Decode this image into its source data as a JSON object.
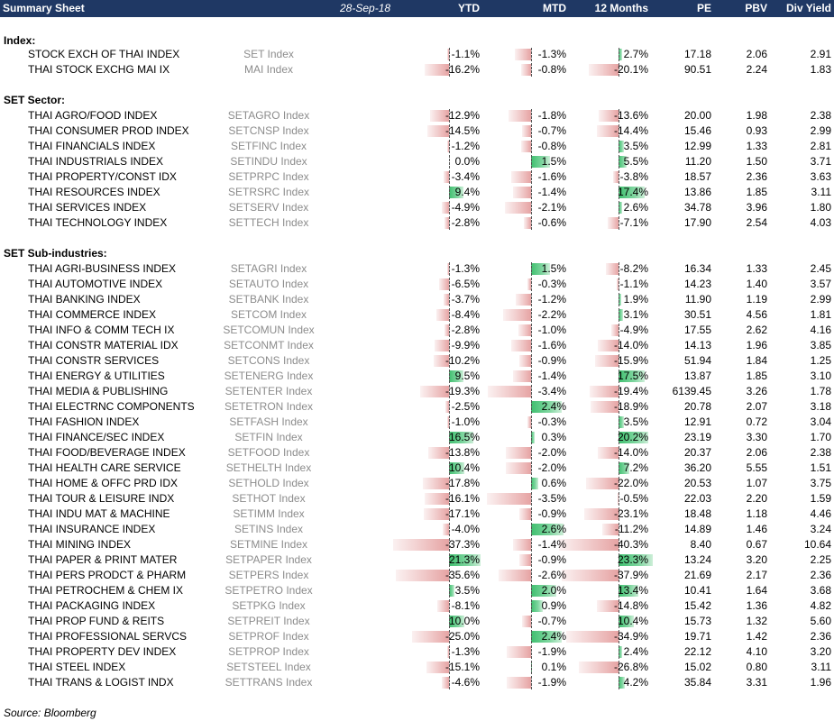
{
  "header": {
    "title": "Summary Sheet",
    "date": "28-Sep-18",
    "columns": [
      "YTD",
      "MTD",
      "12 Months",
      "PE",
      "PBV",
      "Div Yield"
    ]
  },
  "sections": [
    {
      "title": "Index:",
      "rows": [
        {
          "name": "STOCK EXCH OF THAI INDEX",
          "ticker": "SET Index",
          "ytd": "-1.1%",
          "mtd": "-1.3%",
          "m12": "2.7%",
          "pe": "17.18",
          "pbv": "2.06",
          "dy": "2.91"
        },
        {
          "name": "THAI STOCK EXCHG MAI IX",
          "ticker": "MAI Index",
          "ytd": "-16.2%",
          "mtd": "-0.8%",
          "m12": "-20.1%",
          "pe": "90.51",
          "pbv": "2.24",
          "dy": "1.83"
        }
      ]
    },
    {
      "title": "SET Sector:",
      "rows": [
        {
          "name": "THAI AGRO/FOOD INDEX",
          "ticker": "SETAGRO Index",
          "ytd": "-12.9%",
          "mtd": "-1.8%",
          "m12": "-13.6%",
          "pe": "20.00",
          "pbv": "1.98",
          "dy": "2.38"
        },
        {
          "name": "THAI CONSUMER PROD INDEX",
          "ticker": "SETCNSP Index",
          "ytd": "-14.5%",
          "mtd": "-0.7%",
          "m12": "-14.4%",
          "pe": "15.46",
          "pbv": "0.93",
          "dy": "2.99"
        },
        {
          "name": "THAI FINANCIALS INDEX",
          "ticker": "SETFINC Index",
          "ytd": "-1.2%",
          "mtd": "-0.8%",
          "m12": "3.5%",
          "pe": "12.99",
          "pbv": "1.33",
          "dy": "2.81"
        },
        {
          "name": "THAI INDUSTRIALS INDEX",
          "ticker": "SETINDU Index",
          "ytd": "0.0%",
          "mtd": "1.5%",
          "m12": "5.5%",
          "pe": "11.20",
          "pbv": "1.50",
          "dy": "3.71"
        },
        {
          "name": "THAI PROPERTY/CONST IDX",
          "ticker": "SETPRPC Index",
          "ytd": "-3.4%",
          "mtd": "-1.6%",
          "m12": "-3.8%",
          "pe": "18.57",
          "pbv": "2.36",
          "dy": "3.63"
        },
        {
          "name": "THAI RESOURCES INDEX",
          "ticker": "SETRSRC Index",
          "ytd": "9.4%",
          "mtd": "-1.4%",
          "m12": "17.4%",
          "pe": "13.86",
          "pbv": "1.85",
          "dy": "3.11"
        },
        {
          "name": "THAI SERVICES INDEX",
          "ticker": "SETSERV Index",
          "ytd": "-4.9%",
          "mtd": "-2.1%",
          "m12": "2.6%",
          "pe": "34.78",
          "pbv": "3.96",
          "dy": "1.80"
        },
        {
          "name": "THAI TECHNOLOGY INDEX",
          "ticker": "SETTECH Index",
          "ytd": "-2.8%",
          "mtd": "-0.6%",
          "m12": "-7.1%",
          "pe": "17.90",
          "pbv": "2.54",
          "dy": "4.03"
        }
      ]
    },
    {
      "title": "SET Sub-industries:",
      "rows": [
        {
          "name": "THAI AGRI-BUSINESS INDEX",
          "ticker": "SETAGRI Index",
          "ytd": "-1.3%",
          "mtd": "1.5%",
          "m12": "-8.2%",
          "pe": "16.34",
          "pbv": "1.33",
          "dy": "2.45"
        },
        {
          "name": "THAI AUTOMOTIVE INDEX",
          "ticker": "SETAUTO Index",
          "ytd": "-6.5%",
          "mtd": "-0.3%",
          "m12": "-1.1%",
          "pe": "14.23",
          "pbv": "1.40",
          "dy": "3.57"
        },
        {
          "name": "THAI BANKING INDEX",
          "ticker": "SETBANK Index",
          "ytd": "-3.7%",
          "mtd": "-1.2%",
          "m12": "1.9%",
          "pe": "11.90",
          "pbv": "1.19",
          "dy": "2.99"
        },
        {
          "name": "THAI COMMERCE INDEX",
          "ticker": "SETCOM Index",
          "ytd": "-8.4%",
          "mtd": "-2.2%",
          "m12": "3.1%",
          "pe": "30.51",
          "pbv": "4.56",
          "dy": "1.81"
        },
        {
          "name": "THAI INFO & COMM TECH IX",
          "ticker": "SETCOMUN Index",
          "ytd": "-2.8%",
          "mtd": "-1.0%",
          "m12": "-4.9%",
          "pe": "17.55",
          "pbv": "2.62",
          "dy": "4.16"
        },
        {
          "name": "THAI CONSTR MATERIAL IDX",
          "ticker": "SETCONMT Index",
          "ytd": "-9.9%",
          "mtd": "-1.6%",
          "m12": "-14.0%",
          "pe": "14.13",
          "pbv": "1.96",
          "dy": "3.85"
        },
        {
          "name": "THAI CONSTR SERVICES",
          "ticker": "SETCONS Index",
          "ytd": "-10.2%",
          "mtd": "-0.9%",
          "m12": "-15.9%",
          "pe": "51.94",
          "pbv": "1.84",
          "dy": "1.25"
        },
        {
          "name": "THAI ENERGY & UTILITIES",
          "ticker": "SETENERG Index",
          "ytd": "9.5%",
          "mtd": "-1.4%",
          "m12": "17.5%",
          "pe": "13.87",
          "pbv": "1.85",
          "dy": "3.10"
        },
        {
          "name": "THAI MEDIA & PUBLISHING",
          "ticker": "SETENTER Index",
          "ytd": "-19.3%",
          "mtd": "-3.4%",
          "m12": "-19.4%",
          "pe": "6139.45",
          "pbv": "3.26",
          "dy": "1.78"
        },
        {
          "name": "THAI ELECTRNC COMPONENTS",
          "ticker": "SETETRON Index",
          "ytd": "-2.5%",
          "mtd": "2.4%",
          "m12": "-18.9%",
          "pe": "20.78",
          "pbv": "2.07",
          "dy": "3.18"
        },
        {
          "name": "THAI FASHION INDEX",
          "ticker": "SETFASH Index",
          "ytd": "-1.0%",
          "mtd": "-0.3%",
          "m12": "3.5%",
          "pe": "12.91",
          "pbv": "0.72",
          "dy": "3.04"
        },
        {
          "name": "THAI FINANCE/SEC INDEX",
          "ticker": "SETFIN Index",
          "ytd": "16.5%",
          "mtd": "0.3%",
          "m12": "20.2%",
          "pe": "23.19",
          "pbv": "3.30",
          "dy": "1.70"
        },
        {
          "name": "THAI FOOD/BEVERAGE INDEX",
          "ticker": "SETFOOD Index",
          "ytd": "-13.8%",
          "mtd": "-2.0%",
          "m12": "-14.0%",
          "pe": "20.37",
          "pbv": "2.06",
          "dy": "2.38"
        },
        {
          "name": "THAI HEALTH CARE SERVICE",
          "ticker": "SETHELTH Index",
          "ytd": "10.4%",
          "mtd": "-2.0%",
          "m12": "7.2%",
          "pe": "36.20",
          "pbv": "5.55",
          "dy": "1.51"
        },
        {
          "name": "THAI HOME & OFFC PRD IDX",
          "ticker": "SETHOLD Index",
          "ytd": "-17.8%",
          "mtd": "0.6%",
          "m12": "-22.0%",
          "pe": "20.53",
          "pbv": "1.07",
          "dy": "3.75"
        },
        {
          "name": "THAI TOUR & LEISURE INDX",
          "ticker": "SETHOT Index",
          "ytd": "-16.1%",
          "mtd": "-3.5%",
          "m12": "-0.5%",
          "pe": "22.03",
          "pbv": "2.20",
          "dy": "1.59"
        },
        {
          "name": "THAI INDU MAT & MACHINE",
          "ticker": "SETIMM Index",
          "ytd": "-17.1%",
          "mtd": "-0.9%",
          "m12": "-23.1%",
          "pe": "18.48",
          "pbv": "1.18",
          "dy": "4.46"
        },
        {
          "name": "THAI INSURANCE INDEX",
          "ticker": "SETINS Index",
          "ytd": "-4.0%",
          "mtd": "2.6%",
          "m12": "-11.2%",
          "pe": "14.89",
          "pbv": "1.46",
          "dy": "3.24"
        },
        {
          "name": "THAI MINING INDEX",
          "ticker": "SETMINE Index",
          "ytd": "-37.3%",
          "mtd": "-1.4%",
          "m12": "-40.3%",
          "pe": "8.40",
          "pbv": "0.67",
          "dy": "10.64"
        },
        {
          "name": "THAI PAPER & PRINT MATER",
          "ticker": "SETPAPER Index",
          "ytd": "21.3%",
          "mtd": "-0.9%",
          "m12": "23.3%",
          "pe": "13.24",
          "pbv": "3.20",
          "dy": "2.25"
        },
        {
          "name": "THAI PERS PRODCT & PHARM",
          "ticker": "SETPERS Index",
          "ytd": "-35.6%",
          "mtd": "-2.6%",
          "m12": "-37.9%",
          "pe": "21.69",
          "pbv": "2.17",
          "dy": "2.36"
        },
        {
          "name": "THAI PETROCHEM & CHEM IX",
          "ticker": "SETPETRO Index",
          "ytd": "3.5%",
          "mtd": "2.0%",
          "m12": "13.4%",
          "pe": "10.41",
          "pbv": "1.64",
          "dy": "3.68"
        },
        {
          "name": "THAI PACKAGING INDEX",
          "ticker": "SETPKG Index",
          "ytd": "-8.1%",
          "mtd": "0.9%",
          "m12": "-14.8%",
          "pe": "15.42",
          "pbv": "1.36",
          "dy": "4.82"
        },
        {
          "name": "THAI PROP FUND & REITS",
          "ticker": "SETPREIT Index",
          "ytd": "10.0%",
          "mtd": "-0.7%",
          "m12": "10.4%",
          "pe": "15.73",
          "pbv": "1.32",
          "dy": "5.60"
        },
        {
          "name": "THAI PROFESSIONAL SERVCS",
          "ticker": "SETPROF Index",
          "ytd": "-25.0%",
          "mtd": "2.4%",
          "m12": "-34.9%",
          "pe": "19.71",
          "pbv": "1.42",
          "dy": "2.36"
        },
        {
          "name": "THAI PROPERTY DEV INDEX",
          "ticker": "SETPROP Index",
          "ytd": "-1.3%",
          "mtd": "-1.9%",
          "m12": "2.4%",
          "pe": "22.12",
          "pbv": "4.10",
          "dy": "3.20"
        },
        {
          "name": "THAI STEEL INDEX",
          "ticker": "SETSTEEL Index",
          "ytd": "-15.1%",
          "mtd": "0.1%",
          "m12": "-26.8%",
          "pe": "15.02",
          "pbv": "0.80",
          "dy": "3.11"
        },
        {
          "name": "THAI TRANS & LOGIST INDX",
          "ticker": "SETTRANS Index",
          "ytd": "-4.6%",
          "mtd": "-1.9%",
          "m12": "4.2%",
          "pe": "35.84",
          "pbv": "3.31",
          "dy": "1.96"
        }
      ]
    }
  ],
  "source": "Source: Bloomberg",
  "colors": {
    "header_bg": "#1f3864",
    "negative_bar": "#e6a3a3",
    "positive_bar": "#3fbf6f",
    "ticker_text": "#8c8c8c"
  }
}
